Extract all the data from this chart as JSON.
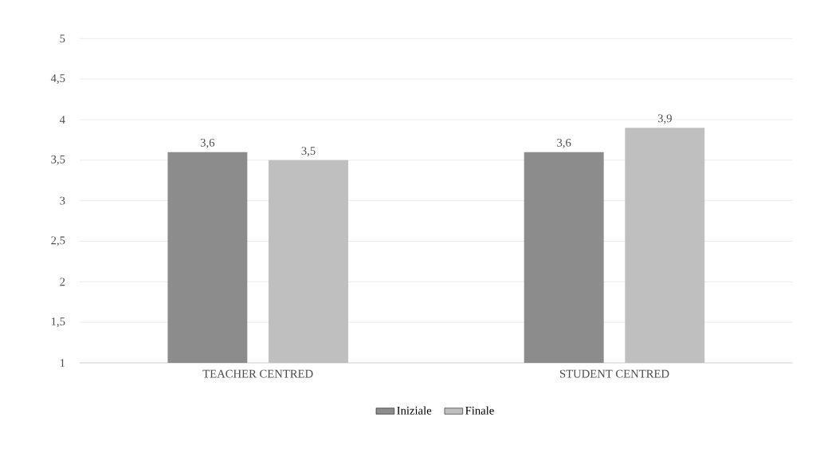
{
  "chart_data": {
    "type": "bar",
    "categories": [
      "TEACHER CENTRED",
      "STUDENT CENTRED"
    ],
    "series": [
      {
        "name": "Iniziale",
        "color": "#8c8c8c",
        "values": [
          3.6,
          3.6
        ],
        "value_labels": [
          "3,6",
          "3,6"
        ]
      },
      {
        "name": "Finale",
        "color": "#bfbfbf",
        "values": [
          3.5,
          3.9
        ],
        "value_labels": [
          "3,5",
          "3,9"
        ]
      }
    ],
    "ylim": [
      1,
      5
    ],
    "yticks": [
      1,
      {
        "value": 1.5,
        "label": "1,5"
      },
      2,
      {
        "value": 2.5,
        "label": "2,5"
      },
      3,
      {
        "value": 3.5,
        "label": "3,5"
      },
      4,
      {
        "value": 4.5,
        "label": "4,5"
      },
      5
    ],
    "grid": "y",
    "legend": "bottom"
  }
}
